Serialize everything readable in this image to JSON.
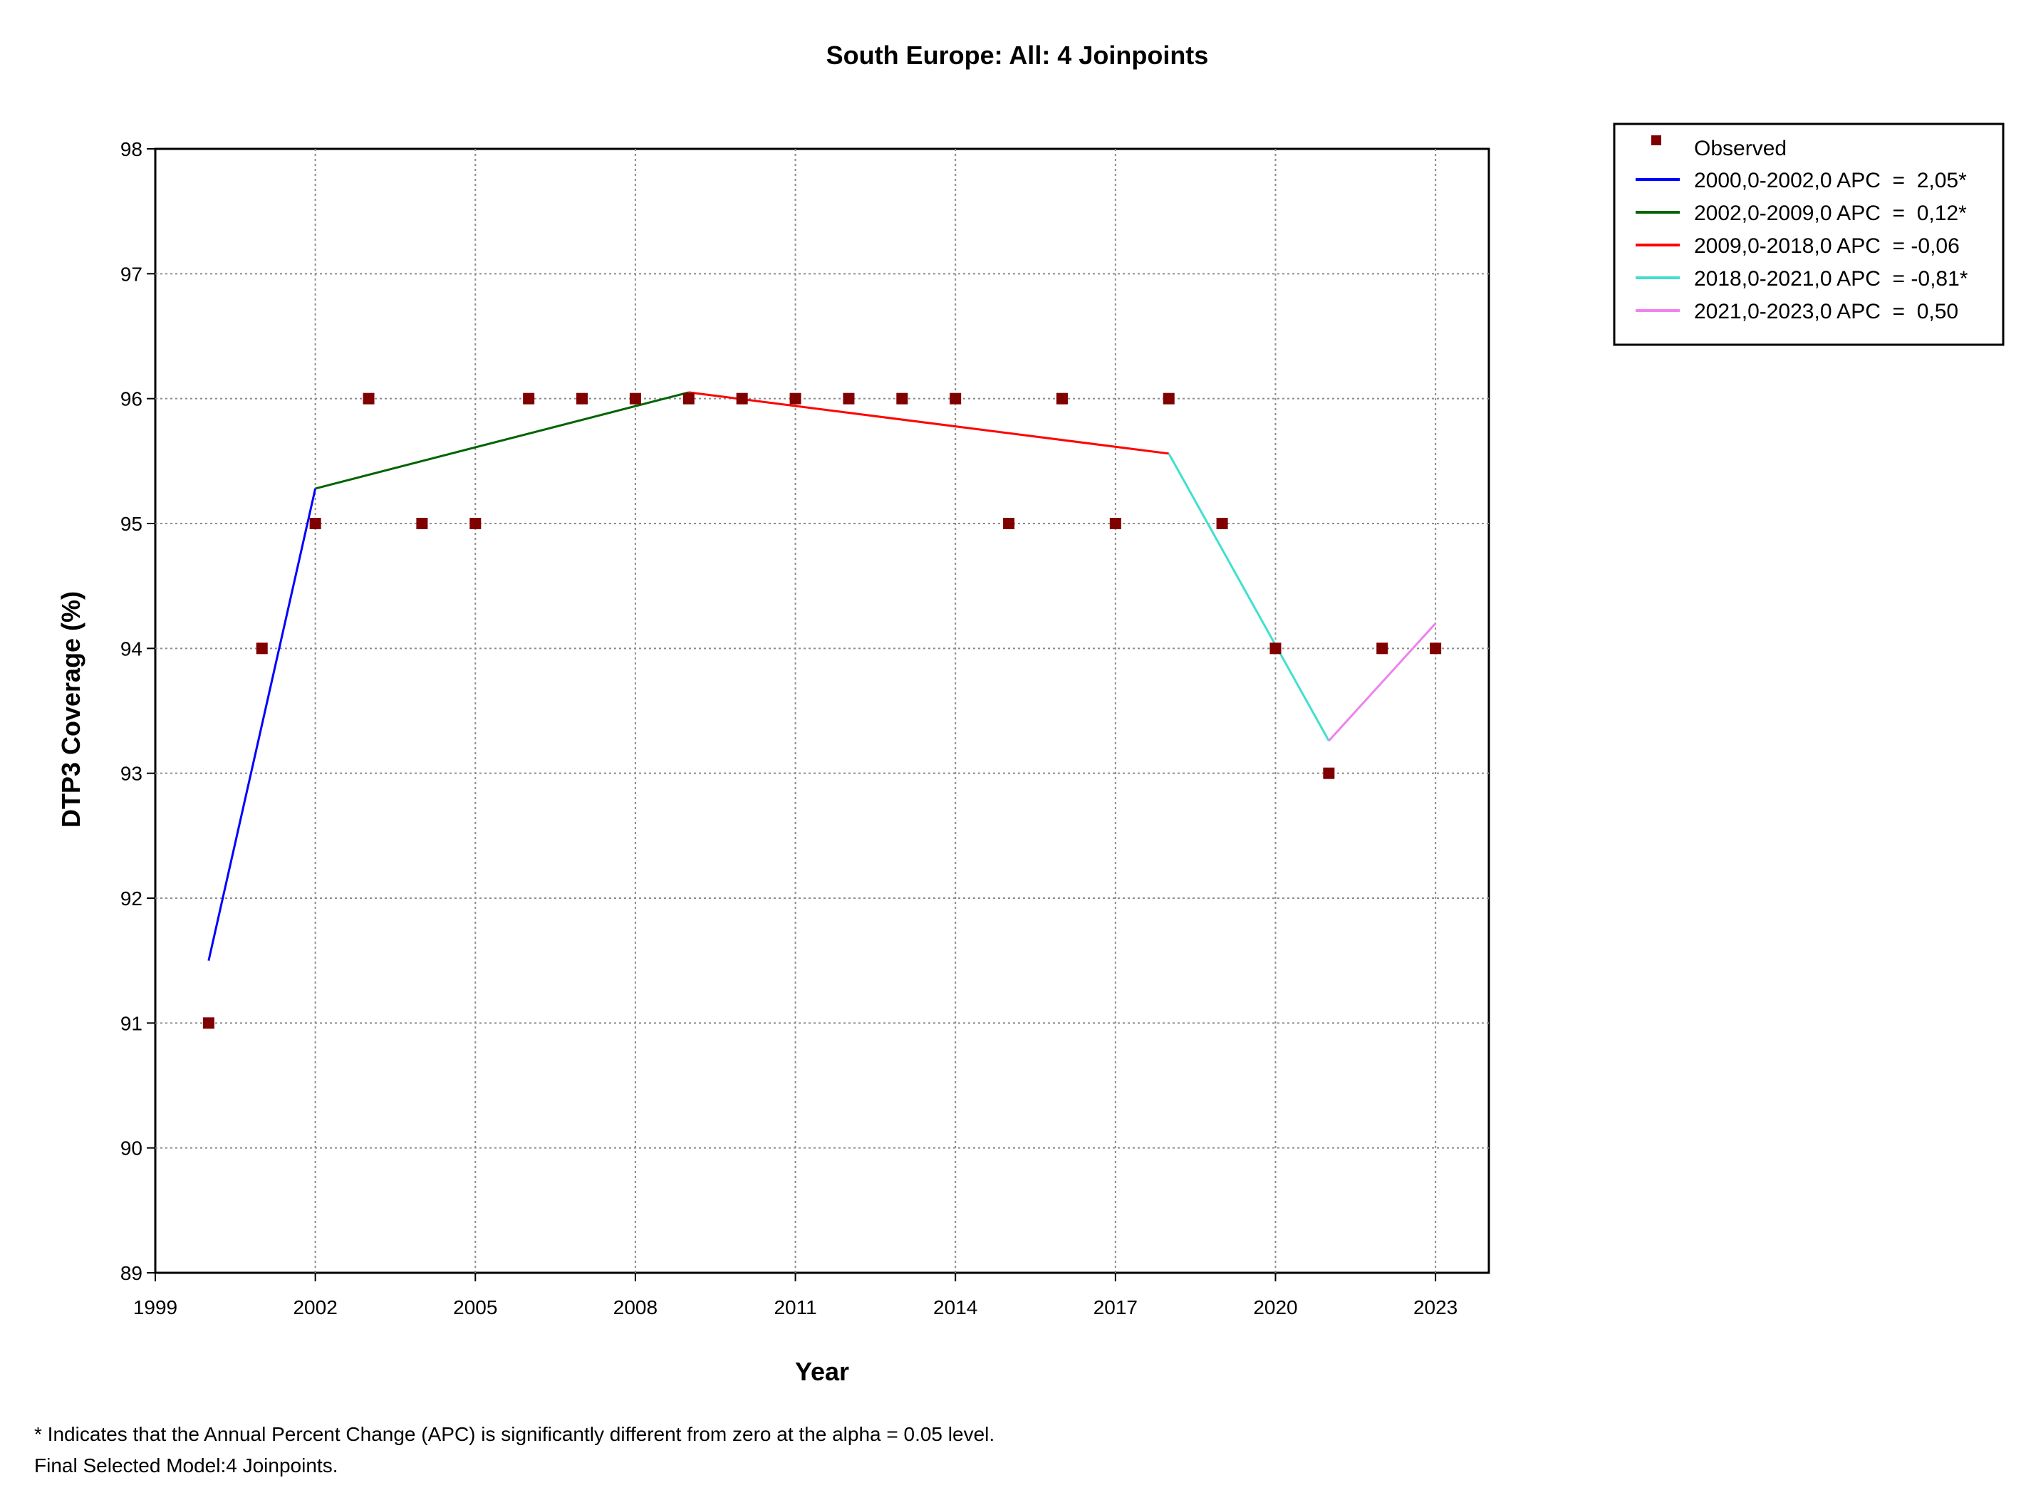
{
  "chart_data": {
    "type": "line",
    "title": "South Europe: All: 4 Joinpoints",
    "xlabel": "Year",
    "ylabel": "DTP3 Coverage (%)",
    "xlim": [
      1999,
      2024
    ],
    "ylim": [
      89,
      98
    ],
    "x_ticks": [
      "1999",
      "2002",
      "2005",
      "2008",
      "2011",
      "2014",
      "2017",
      "2020",
      "2023"
    ],
    "y_ticks": [
      "98",
      "97",
      "96",
      "95",
      "94",
      "93",
      "92",
      "91",
      "90",
      "89"
    ],
    "grid": true,
    "legend_position": "top-right outside plot",
    "observed": {
      "name": "Observed",
      "color": "#800000",
      "x": [
        2000,
        2001,
        2002,
        2003,
        2004,
        2005,
        2006,
        2007,
        2008,
        2009,
        2010,
        2011,
        2012,
        2013,
        2014,
        2015,
        2016,
        2017,
        2018,
        2019,
        2020,
        2021,
        2022,
        2023
      ],
      "y": [
        91,
        94,
        95,
        96,
        95,
        95,
        96,
        96,
        96,
        96,
        96,
        96,
        96,
        96,
        96,
        95,
        96,
        95,
        96,
        95,
        94,
        93,
        94,
        94
      ]
    },
    "series": [
      {
        "name": "2000,0-2002,0 APC  =  2,05*",
        "color": "#0000ff",
        "x": [
          2000,
          2002
        ],
        "y": [
          91.5,
          95.28
        ]
      },
      {
        "name": "2002,0-2009,0 APC  =  0,12*",
        "color": "#006400",
        "x": [
          2002,
          2009
        ],
        "y": [
          95.28,
          96.05
        ]
      },
      {
        "name": "2009,0-2018,0 APC  = -0,06",
        "color": "#ff0000",
        "x": [
          2009,
          2018
        ],
        "y": [
          96.05,
          95.56
        ]
      },
      {
        "name": "2018,0-2021,0 APC  = -0,81*",
        "color": "#40e0d0",
        "x": [
          2018,
          2021
        ],
        "y": [
          95.56,
          93.26
        ]
      },
      {
        "name": "2021,0-2023,0 APC  =  0,50",
        "color": "#ee82ee",
        "x": [
          2021,
          2023
        ],
        "y": [
          93.26,
          94.2
        ]
      }
    ]
  },
  "footnotes": {
    "line1": "* Indicates that the Annual Percent Change (APC) is significantly different from zero at the alpha = 0.05 level.",
    "line2": "Final Selected Model:4 Joinpoints."
  }
}
